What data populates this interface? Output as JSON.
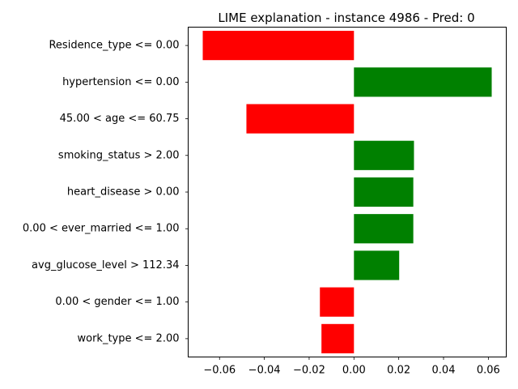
{
  "chart_data": {
    "type": "bar",
    "orientation": "horizontal",
    "title": "LIME explanation - instance 4986 - Pred: 0",
    "xlabel": "",
    "ylabel": "",
    "xlim": [
      -0.074,
      0.068
    ],
    "xticks": [
      -0.06,
      -0.04,
      -0.02,
      0.0,
      0.02,
      0.04,
      0.06
    ],
    "xtick_labels": [
      "−0.06",
      "−0.04",
      "−0.02",
      "0.00",
      "0.02",
      "0.04",
      "0.06"
    ],
    "grid": false,
    "colors": {
      "positive": "#008000",
      "negative": "#ff0000"
    },
    "bars": [
      {
        "label": "Residence_type <= 0.00",
        "value": -0.0675
      },
      {
        "label": "hypertension <= 0.00",
        "value": 0.0615
      },
      {
        "label": "45.00 < age <= 60.75",
        "value": -0.048
      },
      {
        "label": "smoking_status > 2.00",
        "value": 0.0268
      },
      {
        "label": "heart_disease > 0.00",
        "value": 0.0265
      },
      {
        "label": "0.00 < ever_married <= 1.00",
        "value": 0.0265
      },
      {
        "label": "avg_glucose_level > 112.34",
        "value": 0.0202
      },
      {
        "label": "0.00 < gender <= 1.00",
        "value": -0.0152
      },
      {
        "label": "work_type <= 2.00",
        "value": -0.0145
      }
    ]
  }
}
